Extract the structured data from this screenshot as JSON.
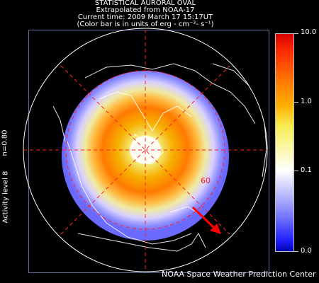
{
  "title": {
    "line1": "STATISTICAL AURORAL OVAL",
    "line2": "Extrapolated from NOAA-17",
    "line3": "Current time: 2009 March 17 15:17UT",
    "line4": "(Color bar is in units of erg - cm⁻²- s⁻¹)"
  },
  "side_labels": {
    "n_value": "n=0.80",
    "activity": "Activity level 8"
  },
  "latitude_label": "60",
  "colorbar": {
    "labels": [
      "10.0",
      "1.0",
      "0.1",
      "0.0"
    ],
    "colors": [
      "#d60000",
      "#ff7a00",
      "#f6ef58",
      "#ffffff",
      "#7777ff",
      "#0000b0"
    ]
  },
  "footer": "NOAA Space Weather Prediction Center",
  "colors": {
    "grid": "#ff2020",
    "arrow": "#ff0000",
    "land_outline": "#ffffff",
    "background": "#000000"
  }
}
